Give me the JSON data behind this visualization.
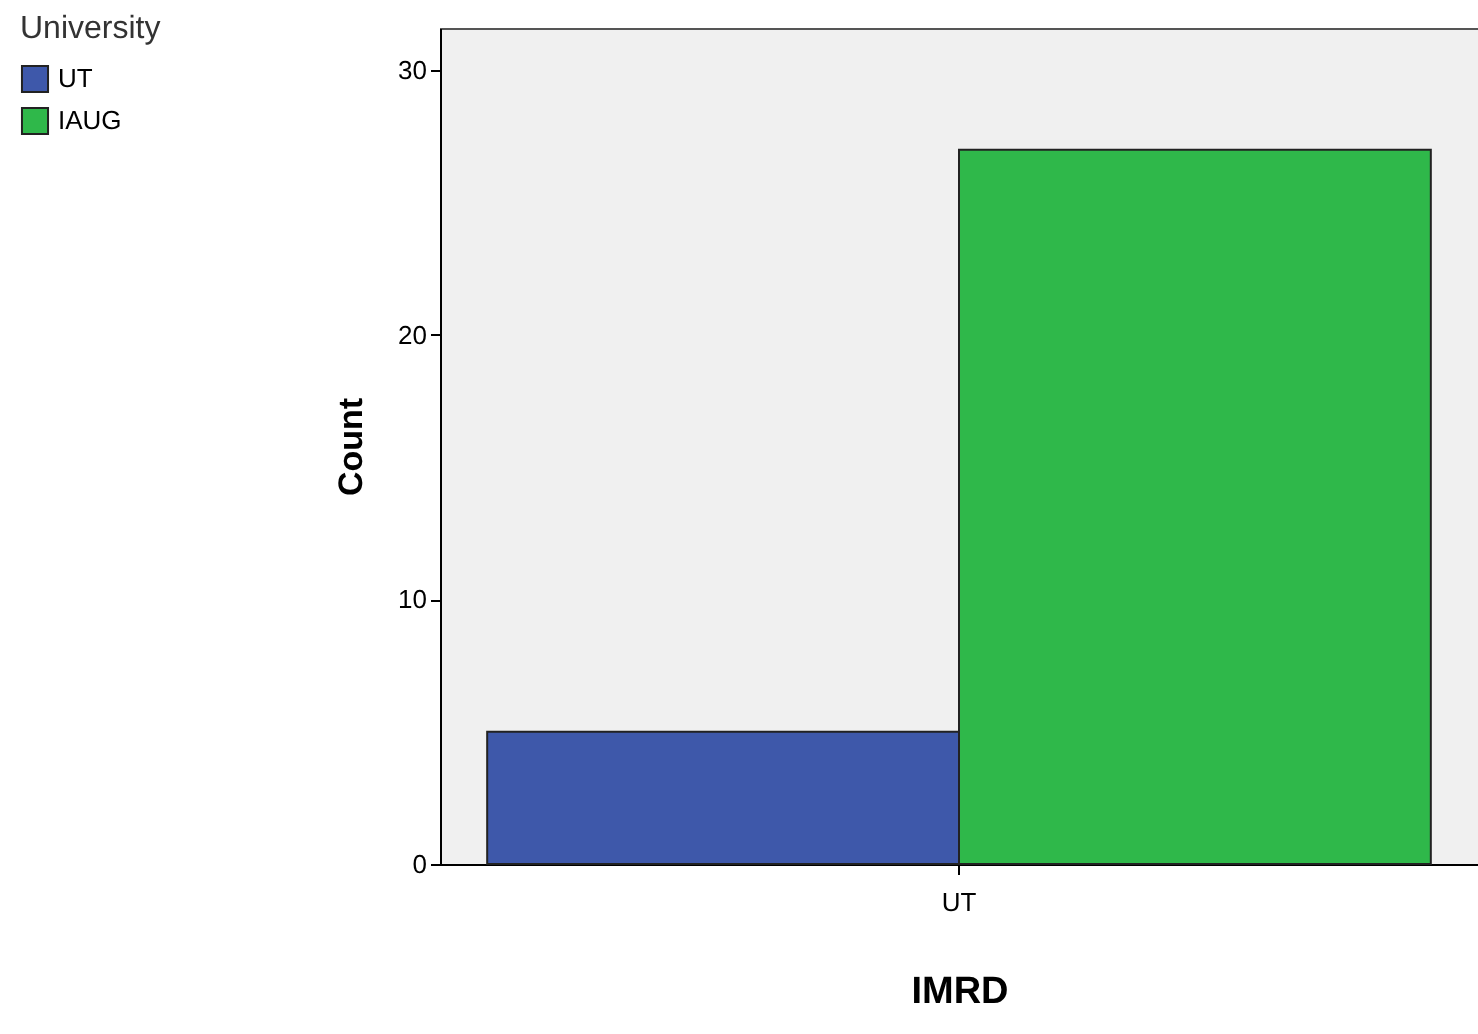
{
  "chart_data": {
    "type": "bar",
    "xlabel": "IMRD",
    "ylabel": "Count",
    "legend_title": "University",
    "categories": [
      "UT"
    ],
    "series": [
      {
        "name": "UT",
        "color": "#3e58aa",
        "values": [
          5
        ]
      },
      {
        "name": "IAUG",
        "color": "#2fb84a",
        "values": [
          27
        ]
      }
    ],
    "ylim": [
      0,
      31.6
    ],
    "yticks": [
      0,
      10,
      20,
      30
    ],
    "grid": false,
    "legend": "left"
  }
}
